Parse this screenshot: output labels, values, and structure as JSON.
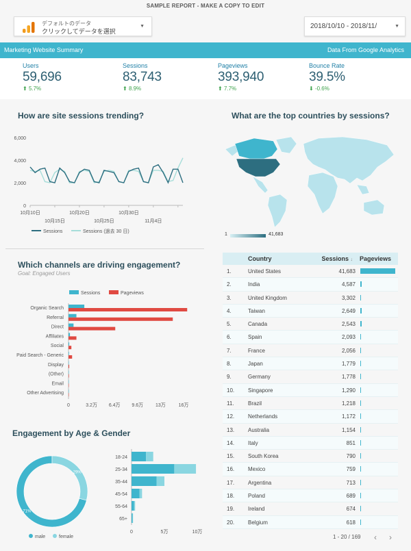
{
  "header": {
    "title": "SAMPLE REPORT - MAKE A COPY TO EDIT",
    "data_source": {
      "line1": "デフォルトのデータ",
      "line2": "クリックしてデータを選択"
    },
    "date_range": "2018/10/10 - 2018/11/"
  },
  "banner": {
    "left": "Marketing Website Summary",
    "right": "Data From Google Analytics"
  },
  "colors": {
    "accent": "#3fb5cd",
    "pageviews": "#e04a42",
    "dark_teal": "#2d6e80",
    "light_teal": "#9fd9dc"
  },
  "kpis": [
    {
      "label": "Users",
      "value": "59,696",
      "delta": "5.7%",
      "dir": "up"
    },
    {
      "label": "Sessions",
      "value": "83,743",
      "delta": "8.9%",
      "dir": "up"
    },
    {
      "label": "Pageviews",
      "value": "393,940",
      "delta": "7.7%",
      "dir": "up"
    },
    {
      "label": "Bounce Rate",
      "value": "39.5%",
      "delta": "-0.6%",
      "dir": "down"
    }
  ],
  "sessions_section": {
    "title": "How are site sessions trending?"
  },
  "countries_section": {
    "title": "What are the top countries by sessions?",
    "legend_min": "1",
    "legend_max": "41,683"
  },
  "channels_section": {
    "title": "Which channels are driving engagement?",
    "subtitle": "Goal: Engaged Users"
  },
  "age_section": {
    "title": "Engagement by Age & Gender"
  },
  "table": {
    "headers": {
      "country": "Country",
      "sessions": "Sessions",
      "pageviews": "Pageviews",
      "sort_indicator": "↓"
    },
    "pager": "1 - 20 / 169",
    "rows": [
      {
        "rank": "1.",
        "country": "United States",
        "sessions": "41,683",
        "pv": 1.0
      },
      {
        "rank": "2.",
        "country": "India",
        "sessions": "4,587",
        "pv": 0.04
      },
      {
        "rank": "3.",
        "country": "United Kingdom",
        "sessions": "3,302",
        "pv": 0.025
      },
      {
        "rank": "4.",
        "country": "Taiwan",
        "sessions": "2,649",
        "pv": 0.03
      },
      {
        "rank": "5.",
        "country": "Canada",
        "sessions": "2,543",
        "pv": 0.03
      },
      {
        "rank": "6.",
        "country": "Spain",
        "sessions": "2,093",
        "pv": 0.015
      },
      {
        "rank": "7.",
        "country": "France",
        "sessions": "2,056",
        "pv": 0.015
      },
      {
        "rank": "8.",
        "country": "Japan",
        "sessions": "1,779",
        "pv": 0.02
      },
      {
        "rank": "9.",
        "country": "Germany",
        "sessions": "1,778",
        "pv": 0.015
      },
      {
        "rank": "10.",
        "country": "Singapore",
        "sessions": "1,290",
        "pv": 0.01
      },
      {
        "rank": "11.",
        "country": "Brazil",
        "sessions": "1,218",
        "pv": 0.012
      },
      {
        "rank": "12.",
        "country": "Netherlands",
        "sessions": "1,172",
        "pv": 0.01
      },
      {
        "rank": "13.",
        "country": "Australia",
        "sessions": "1,154",
        "pv": 0.01
      },
      {
        "rank": "14.",
        "country": "Italy",
        "sessions": "851",
        "pv": 0.008
      },
      {
        "rank": "15.",
        "country": "South Korea",
        "sessions": "790",
        "pv": 0.008
      },
      {
        "rank": "16.",
        "country": "Mexico",
        "sessions": "759",
        "pv": 0.008
      },
      {
        "rank": "17.",
        "country": "Argentina",
        "sessions": "713",
        "pv": 0.007
      },
      {
        "rank": "18.",
        "country": "Poland",
        "sessions": "689",
        "pv": 0.006
      },
      {
        "rank": "19.",
        "country": "Ireland",
        "sessions": "674",
        "pv": 0.006
      },
      {
        "rank": "20.",
        "country": "Belgium",
        "sessions": "618",
        "pv": 0.006
      }
    ]
  },
  "chart_data": [
    {
      "type": "line",
      "title": "How are site sessions trending?",
      "yticks": [
        "0",
        "2,000",
        "4,000",
        "6,000"
      ],
      "ylim": [
        0,
        6000
      ],
      "xticks_top": [
        "10月10日",
        "10月20日",
        "10月30日"
      ],
      "xticks_bottom": [
        "10月15日",
        "10月25日",
        "11月4日"
      ],
      "series": [
        {
          "name": "Sessions",
          "color": "#2d6e80",
          "values": [
            3400,
            2900,
            3200,
            3300,
            2100,
            2000,
            3300,
            2900,
            2100,
            2000,
            2900,
            3200,
            3100,
            2100,
            2000,
            3100,
            3000,
            2900,
            2100,
            2000,
            3000,
            3200,
            3300,
            2100,
            2000,
            3400,
            3600,
            2900,
            2000,
            3200,
            3200,
            2000
          ]
        },
        {
          "name": "Sessions (過去 30 日)",
          "color": "#a6ddd9",
          "values": [
            3100,
            3000,
            3100,
            2100,
            2000,
            2900,
            3200,
            3000,
            2000,
            2000,
            3000,
            3100,
            3000,
            2000,
            2100,
            3000,
            3100,
            3000,
            2100,
            2000,
            3100,
            3100,
            3000,
            2100,
            2000,
            3100,
            3100,
            3000,
            2100,
            2200,
            3300,
            4200
          ]
        }
      ]
    },
    {
      "type": "bar",
      "title": "Which channels are driving engagement?",
      "orientation": "horizontal",
      "categories": [
        "Organic Search",
        "Referral",
        "Direct",
        "Affiliates",
        "Social",
        "Paid Search - Generic",
        "Display",
        "(Other)",
        "Email",
        "Other Advertising"
      ],
      "series": [
        {
          "name": "Sessions",
          "color": "#3fb5cd",
          "values": [
            22000,
            11000,
            7000,
            2000,
            1000,
            700,
            400,
            200,
            100,
            50
          ]
        },
        {
          "name": "Pageviews",
          "color": "#e04a42",
          "values": [
            165000,
            145000,
            65000,
            11000,
            4000,
            5000,
            1000,
            600,
            300,
            100
          ]
        }
      ],
      "xticks": [
        "0",
        "3.2万",
        "6.4万",
        "9.6万",
        "13万",
        "16万"
      ],
      "xlim": [
        0,
        160000
      ]
    },
    {
      "type": "pie",
      "title": "Engagement by Age & Gender",
      "slices": [
        {
          "name": "male",
          "value": 71,
          "color": "#3fb5cd",
          "label": "71%"
        },
        {
          "name": "female",
          "value": 29,
          "color": "#8ad6e1",
          "label": "29%"
        }
      ]
    },
    {
      "type": "bar",
      "orientation": "horizontal",
      "stacked": true,
      "categories": [
        "18-24",
        "25-34",
        "35-44",
        "45-54",
        "55-64",
        "65+"
      ],
      "series": [
        {
          "name": "male",
          "color": "#3fb5cd",
          "values": [
            22000,
            65000,
            38000,
            12000,
            4000,
            1500
          ]
        },
        {
          "name": "female",
          "color": "#8ad6e1",
          "values": [
            11000,
            33000,
            12000,
            4000,
            1500,
            800
          ]
        }
      ],
      "xticks": [
        "0",
        "5万",
        "10万"
      ],
      "xlim": [
        0,
        100000
      ]
    }
  ]
}
